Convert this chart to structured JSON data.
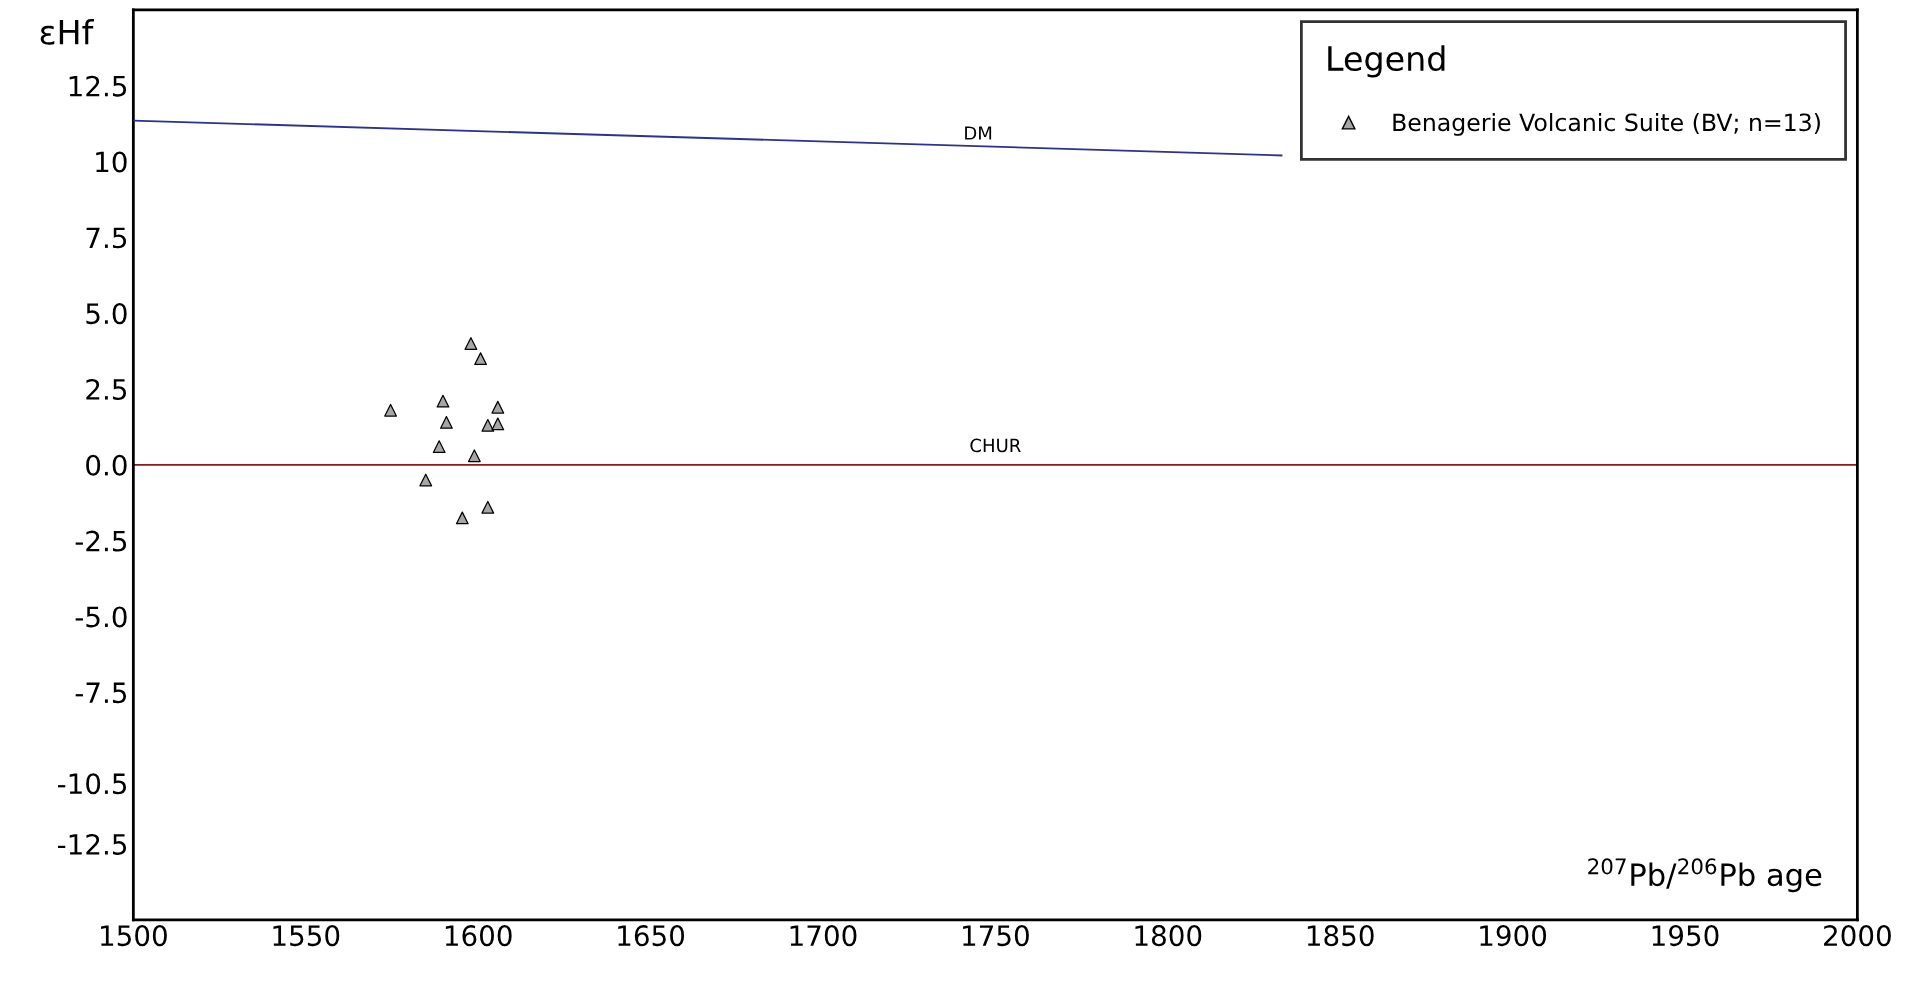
{
  "chart_data": {
    "type": "scatter",
    "xlabel": "$^{207}$Pb/$^{206}$Pb age",
    "ylabel": "εHf",
    "legend_title": "Legend",
    "legend": "top right",
    "marker": "triangle",
    "grid": false,
    "xlim": [
      1500,
      2000
    ],
    "ylim": [
      -15,
      15
    ],
    "xticks": [
      1500,
      1550,
      1600,
      1650,
      1700,
      1750,
      1800,
      1850,
      1900,
      1950,
      2000
    ],
    "yticks": [
      {
        "value": -12.5,
        "label": "-12.5"
      },
      {
        "value": -10.5,
        "label": "-10.5"
      },
      {
        "value": -7.5,
        "label": "-7.5"
      },
      {
        "value": -5,
        "label": "-5.0"
      },
      {
        "value": -2.5,
        "label": "-2.5"
      },
      {
        "value": 0,
        "label": "0.0"
      },
      {
        "value": 2.5,
        "label": "2.5"
      },
      {
        "value": 5,
        "label": "5.0"
      },
      7.5,
      10,
      12.5
    ],
    "series": [
      {
        "name": "Benagerie Volcanic Suite (BV; n=13)",
        "color": "#a6a6a6",
        "x": [
          1597.9,
          1600.7,
          1589.8,
          1605.7,
          1574.6,
          1590.8,
          1602.8,
          1605.7,
          1588.7,
          1598.9,
          1584.8,
          1602.8,
          1595.4
        ],
        "values": [
          4.0,
          3.5,
          2.1,
          1.9,
          1.8,
          1.4,
          1.3,
          1.35,
          0.6,
          0.3,
          -0.5,
          -1.4,
          -1.75
        ]
      },
      {
        "type": "line",
        "color": "#2e3192",
        "marker": "none",
        "x": [
          1500,
          1833
        ],
        "values": [
          11.35,
          10.2
        ]
      }
    ],
    "ref_lines": [
      {
        "axis": "y",
        "value": 0,
        "label": "CHUR",
        "color": "#8b1a1a"
      }
    ],
    "annotations": [
      {
        "text": "DM",
        "x": 1745,
        "y": 10.6
      }
    ]
  }
}
